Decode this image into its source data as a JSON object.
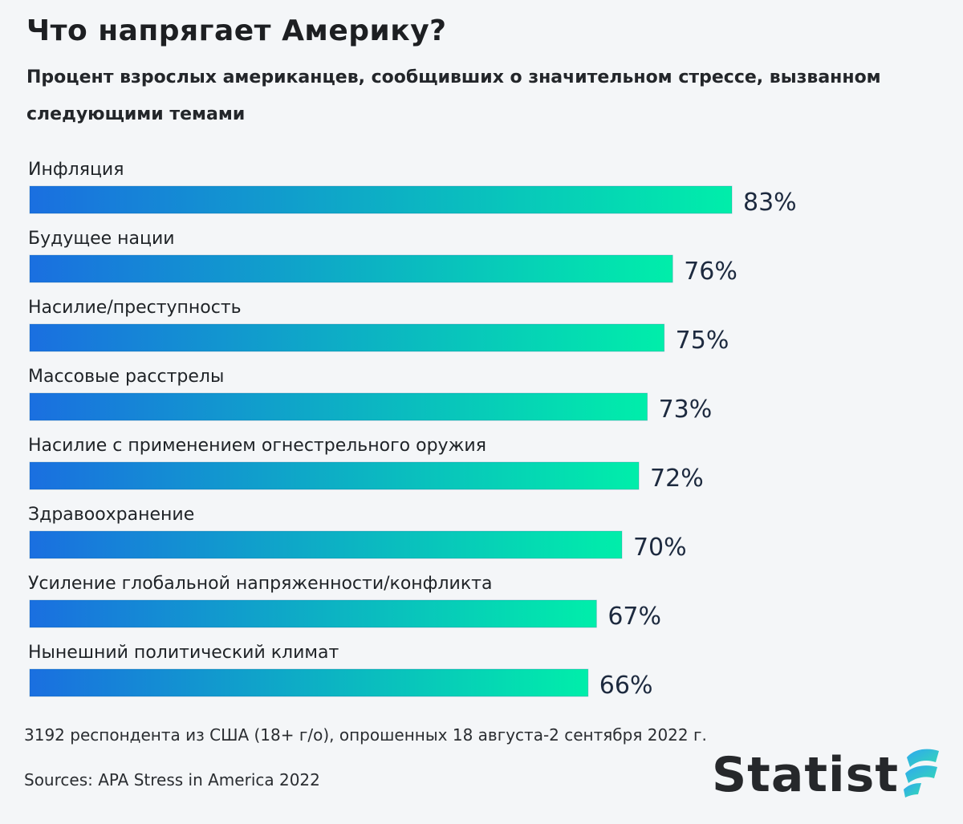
{
  "title": "Что напрягает Америку?",
  "subtitle": "Процент взрослых американцев, сообщивших о значительном стрессе, вызванном следующими темами",
  "chart_data": {
    "type": "bar",
    "orientation": "horizontal",
    "categories": [
      "Инфляция",
      "Будущее нации",
      "Насилие/преступность",
      "Массовые расстрелы",
      "Насилие с применением огнестрельного оружия",
      "Здравоохранение",
      "Усиление глобальной напряженности/конфликта",
      "Нынешний политический климат"
    ],
    "values": [
      83,
      76,
      75,
      73,
      72,
      70,
      67,
      66
    ],
    "value_labels": [
      "83%",
      "76%",
      "75%",
      "73%",
      "72%",
      "70%",
      "67%",
      "66%"
    ],
    "unit": "%",
    "xlim": [
      0,
      100
    ],
    "bar_gradient": [
      "#1a6fe0",
      "#00eeaa"
    ],
    "grid": false,
    "legend": "none"
  },
  "footer": {
    "note": "3192 респондента из США (18+ г/о), опрошенных 18 августа-2 сентября 2022 г.",
    "source": "Sources: APA Stress in America 2022"
  },
  "logo": {
    "text": "Statist",
    "mark_icon": "statista-wave-icon",
    "mark_colors": [
      "#2fa8f0",
      "#34d9b4"
    ]
  }
}
